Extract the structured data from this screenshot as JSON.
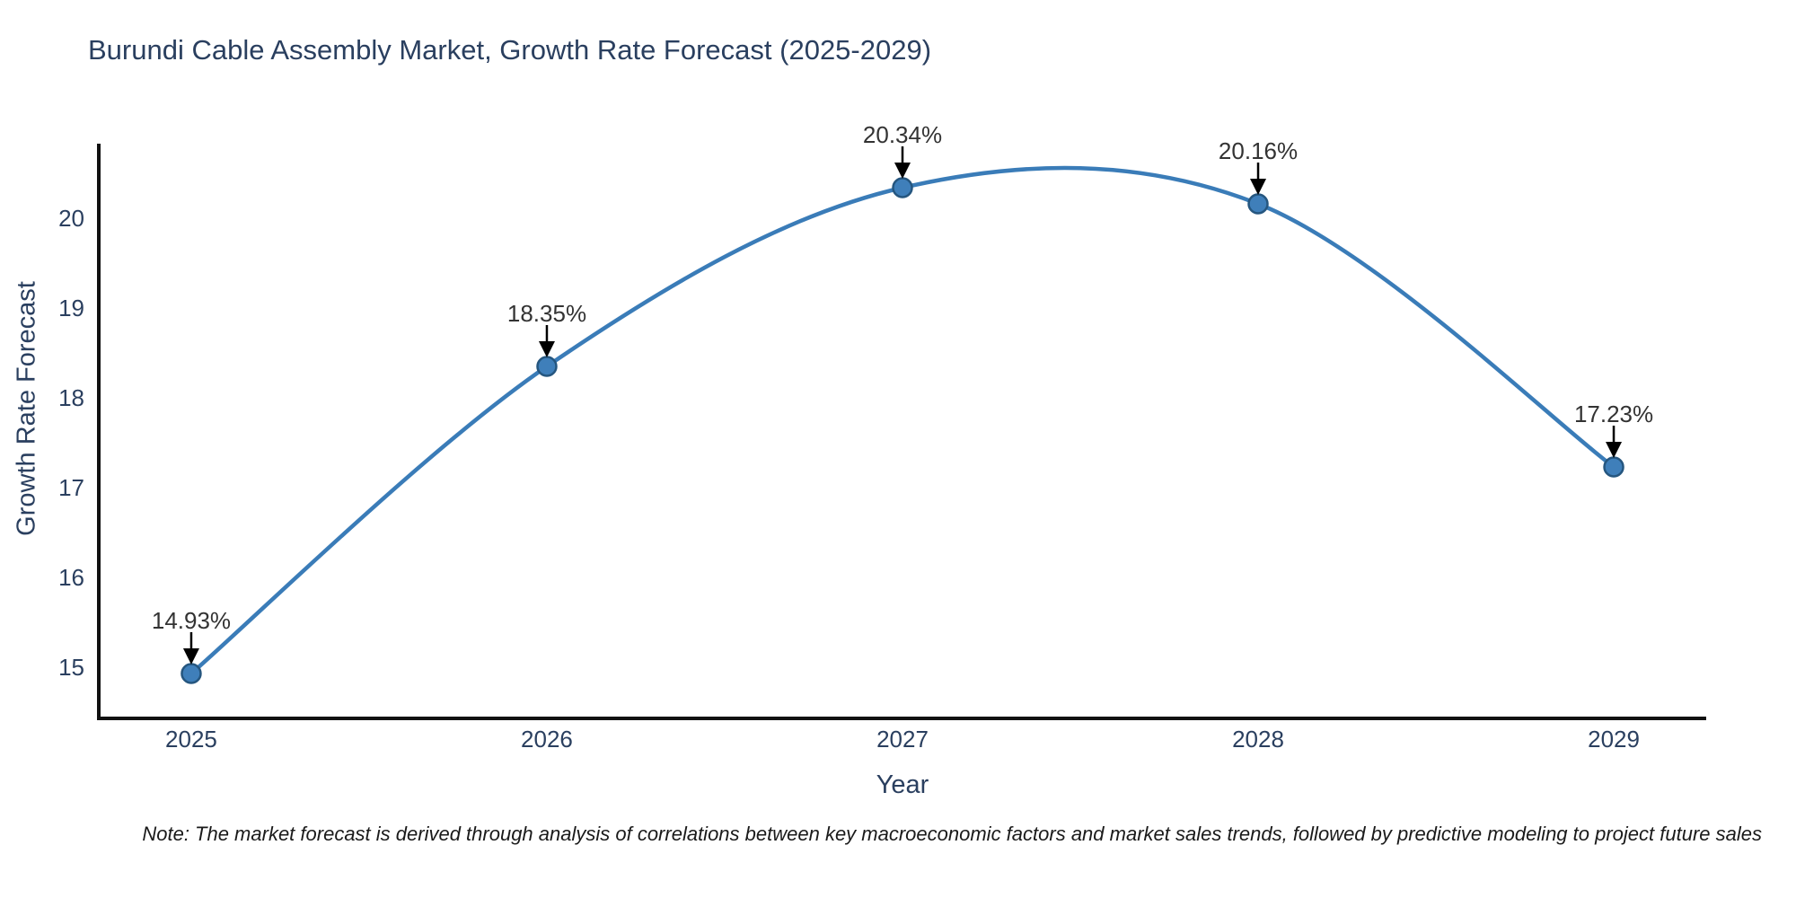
{
  "page": {
    "background": "#ffffff"
  },
  "chart_data": {
    "type": "line",
    "title": "Burundi Cable Assembly Market, Growth Rate Forecast (2025-2029)",
    "xlabel": "Year",
    "ylabel": "Growth Rate Forecast",
    "x": [
      2025,
      2026,
      2027,
      2028,
      2029
    ],
    "y": [
      14.93,
      18.35,
      20.34,
      20.16,
      17.23
    ],
    "point_labels": [
      "14.93%",
      "18.35%",
      "20.34%",
      "20.16%",
      "17.23%"
    ],
    "xticks": [
      "2025",
      "2026",
      "2027",
      "2028",
      "2029"
    ],
    "xtick_values": [
      2025,
      2026,
      2027,
      2028,
      2029
    ],
    "yticks": [
      "15",
      "16",
      "17",
      "18",
      "19",
      "20"
    ],
    "ytick_values": [
      15,
      16,
      17,
      18,
      19,
      20
    ],
    "xlim": [
      2024.74,
      2029.26
    ],
    "ylim": [
      14.43,
      20.83
    ],
    "curve": "smooth-spline",
    "legend": "none",
    "grid": "off",
    "colors": {
      "line": "#3a7cb8",
      "marker_fill": "#3f7fba",
      "marker_edge": "#25567f",
      "axis": "#111111",
      "tick_text": "#2a3f5f",
      "title_text": "#2a3f5f",
      "annotation_text": "#333333",
      "arrow": "#000000"
    }
  },
  "note": {
    "text": "Note: The market forecast is derived through analysis of correlations between key macroeconomic factors and market sales trends, followed by predictive modeling to project future sales"
  }
}
